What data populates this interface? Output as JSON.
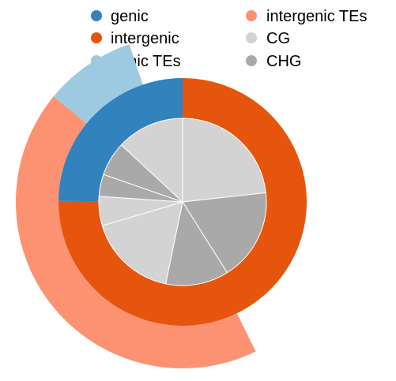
{
  "chart_data": {
    "type": "pie",
    "title": "",
    "legend": {
      "placement": "top",
      "entries": [
        {
          "label": "genic",
          "color": "#3182bd"
        },
        {
          "label": "intergenic",
          "color": "#e6550d"
        },
        {
          "label": "genic TEs",
          "color": "#9ecae1"
        },
        {
          "label": "intergenic TEs",
          "color": "#fc9272"
        },
        {
          "label": "CG",
          "color": "#d3d3d3"
        },
        {
          "label": "CHG",
          "color": "#a9a9a9"
        }
      ]
    },
    "rings": [
      {
        "name": "outer",
        "slices": [
          {
            "label": "intergenic TEs",
            "value": 0.4315,
            "color": "#fc9272"
          },
          {
            "label": "genic TEs",
            "value": 0.0889,
            "color": "#9ecae1"
          }
        ],
        "gap_value": 0.4796
      },
      {
        "name": "middle",
        "slices": [
          {
            "label": "intergenic",
            "value": 0.7513,
            "color": "#e6550d"
          },
          {
            "label": "genic",
            "value": 0.2487,
            "color": "#3182bd"
          }
        ]
      },
      {
        "name": "inner",
        "slices": [
          {
            "label": "CG",
            "value": 0.2326,
            "color": "#d3d3d3"
          },
          {
            "label": "CHG",
            "value": 0.178,
            "color": "#a9a9a9"
          },
          {
            "label": "CHG",
            "value": 0.1218,
            "color": "#a9a9a9"
          },
          {
            "label": "CG",
            "value": 0.1717,
            "color": "#d3d3d3"
          },
          {
            "label": "CG",
            "value": 0.0566,
            "color": "#d3d3d3"
          },
          {
            "label": "CHG",
            "value": 0.0427,
            "color": "#a9a9a9"
          },
          {
            "label": "CHG",
            "value": 0.0659,
            "color": "#a9a9a9"
          },
          {
            "label": "CG",
            "value": 0.1307,
            "color": "#d3d3d3"
          }
        ]
      }
    ]
  }
}
